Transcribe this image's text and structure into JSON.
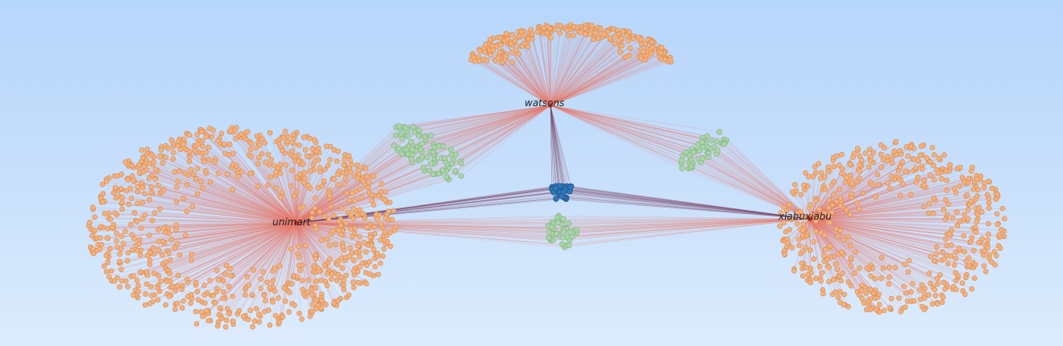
{
  "graph": {
    "hubs": [
      {
        "id": "watsons",
        "label": "watsons"
      },
      {
        "id": "unimart",
        "label": "unimart"
      },
      {
        "id": "xiabuxiabu",
        "label": "xiabuxiabu"
      }
    ],
    "exclusive_groups": [
      {
        "hub": "watsons",
        "node_count": 260
      },
      {
        "hub": "unimart",
        "node_count": 900
      },
      {
        "hub": "xiabuxiabu",
        "node_count": 560
      }
    ],
    "shared_groups": [
      {
        "hubs": [
          "watsons",
          "unimart"
        ],
        "node_count": 90
      },
      {
        "hubs": [
          "watsons",
          "xiabuxiabu"
        ],
        "node_count": 50
      },
      {
        "hubs": [
          "unimart",
          "xiabuxiabu"
        ],
        "node_count": 40
      },
      {
        "hubs": [
          "watsons",
          "unimart",
          "xiabuxiabu"
        ],
        "node_count": 30
      }
    ]
  },
  "colors": {
    "exclusive_node": "#f2b27e",
    "exclusive_node_stroke": "#d9874f",
    "shared_pair_node": "#a9d5a8",
    "shared_pair_stroke": "#7fae7e",
    "shared_all_node": "#2e77b8",
    "shared_all_stroke": "#1c4f84",
    "edge": "#e87a6a",
    "edge_all": "#7d4a6e"
  }
}
